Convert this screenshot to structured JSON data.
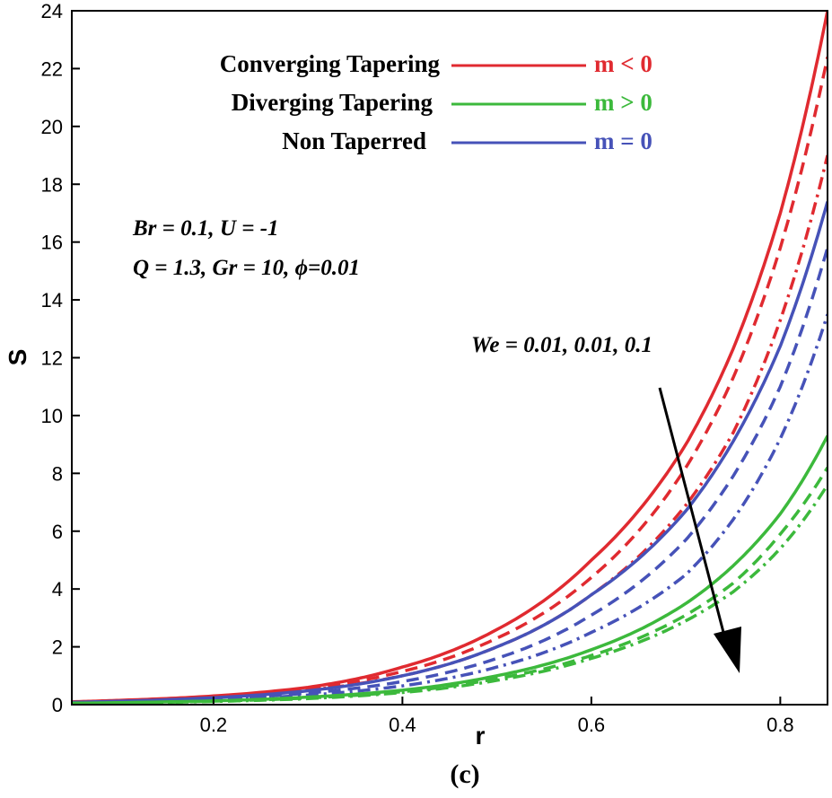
{
  "chart_data": {
    "type": "line",
    "xlabel": "r",
    "ylabel": "S",
    "xlim": [
      0.05,
      0.85
    ],
    "ylim": [
      0,
      24
    ],
    "xticks": [
      0.2,
      0.4,
      0.6,
      0.8
    ],
    "yticks": [
      0,
      2,
      4,
      6,
      8,
      10,
      12,
      14,
      16,
      18,
      20,
      22,
      24
    ],
    "grid": false,
    "legend": [
      {
        "label": "Converging Tapering",
        "condition": "m < 0",
        "color": "#e02a30"
      },
      {
        "label": "Diverging Tapering",
        "condition": "m > 0",
        "color": "#3cb93c"
      },
      {
        "label": "Non Taperred",
        "condition": "m = 0",
        "color": "#4652b8"
      }
    ],
    "parameters": [
      "Br = 0.1, U = -1",
      "Q = 1.3, Gr = 10, ϕ=0.01"
    ],
    "annotation": "We = 0.01, 0.01, 0.1",
    "caption": "(c)",
    "series": [
      {
        "name": "Converging Tapering, solid",
        "group": "m < 0",
        "color": "#e02a30",
        "dash": "solid",
        "x": [
          0.05,
          0.1,
          0.2,
          0.3,
          0.4,
          0.5,
          0.6,
          0.7,
          0.75,
          0.8,
          0.85
        ],
        "y": [
          0.1,
          0.15,
          0.3,
          0.6,
          1.3,
          2.6,
          5.0,
          9.0,
          12.3,
          17.0,
          24.0
        ]
      },
      {
        "name": "Converging Tapering, dashed",
        "group": "m < 0",
        "color": "#e02a30",
        "dash": "dash",
        "x": [
          0.05,
          0.1,
          0.2,
          0.3,
          0.4,
          0.5,
          0.6,
          0.7,
          0.75,
          0.8,
          0.85
        ],
        "y": [
          0.09,
          0.14,
          0.28,
          0.55,
          1.15,
          2.3,
          4.4,
          8.2,
          11.3,
          15.8,
          22.4
        ]
      },
      {
        "name": "Converging Tapering, dash-dot",
        "group": "m < 0",
        "color": "#e02a30",
        "dash": "dashdot",
        "x": [
          0.05,
          0.1,
          0.2,
          0.3,
          0.4,
          0.5,
          0.6,
          0.7,
          0.75,
          0.8,
          0.85
        ],
        "y": [
          0.08,
          0.12,
          0.25,
          0.5,
          1.0,
          2.0,
          3.8,
          6.9,
          9.4,
          13.3,
          19.0
        ]
      },
      {
        "name": "Non Taperred, solid",
        "group": "m = 0",
        "color": "#4652b8",
        "dash": "solid",
        "x": [
          0.05,
          0.1,
          0.2,
          0.3,
          0.4,
          0.5,
          0.6,
          0.7,
          0.75,
          0.8,
          0.85
        ],
        "y": [
          0.08,
          0.12,
          0.24,
          0.48,
          1.0,
          2.0,
          3.8,
          6.7,
          9.1,
          12.4,
          17.4
        ]
      },
      {
        "name": "Non Taperred, dashed",
        "group": "m = 0",
        "color": "#4652b8",
        "dash": "dash",
        "x": [
          0.05,
          0.1,
          0.2,
          0.3,
          0.4,
          0.5,
          0.6,
          0.7,
          0.75,
          0.8,
          0.85
        ],
        "y": [
          0.07,
          0.1,
          0.2,
          0.4,
          0.8,
          1.6,
          3.1,
          5.7,
          7.9,
          11.0,
          15.8
        ]
      },
      {
        "name": "Non Taperred, dash-dot",
        "group": "m = 0",
        "color": "#4652b8",
        "dash": "dashdot",
        "x": [
          0.05,
          0.1,
          0.2,
          0.3,
          0.4,
          0.5,
          0.6,
          0.7,
          0.75,
          0.8,
          0.85
        ],
        "y": [
          0.06,
          0.09,
          0.17,
          0.33,
          0.65,
          1.3,
          2.5,
          4.5,
          6.4,
          9.2,
          13.5
        ]
      },
      {
        "name": "Diverging Tapering, solid",
        "group": "m > 0",
        "color": "#3cb93c",
        "dash": "solid",
        "x": [
          0.05,
          0.1,
          0.2,
          0.3,
          0.4,
          0.5,
          0.6,
          0.7,
          0.75,
          0.8,
          0.85
        ],
        "y": [
          0.05,
          0.07,
          0.13,
          0.26,
          0.5,
          1.0,
          1.9,
          3.5,
          4.8,
          6.6,
          9.3
        ]
      },
      {
        "name": "Diverging Tapering, dashed",
        "group": "m > 0",
        "color": "#3cb93c",
        "dash": "dash",
        "x": [
          0.05,
          0.1,
          0.2,
          0.3,
          0.4,
          0.5,
          0.6,
          0.7,
          0.75,
          0.8,
          0.85
        ],
        "y": [
          0.05,
          0.06,
          0.12,
          0.23,
          0.45,
          0.9,
          1.7,
          3.1,
          4.2,
          5.9,
          8.2
        ]
      },
      {
        "name": "Diverging Tapering, dash-dot",
        "group": "m > 0",
        "color": "#3cb93c",
        "dash": "dashdot",
        "x": [
          0.05,
          0.1,
          0.2,
          0.3,
          0.4,
          0.5,
          0.6,
          0.7,
          0.75,
          0.8,
          0.85
        ],
        "y": [
          0.04,
          0.06,
          0.11,
          0.21,
          0.42,
          0.84,
          1.6,
          2.9,
          3.9,
          5.4,
          7.6
        ]
      }
    ]
  }
}
